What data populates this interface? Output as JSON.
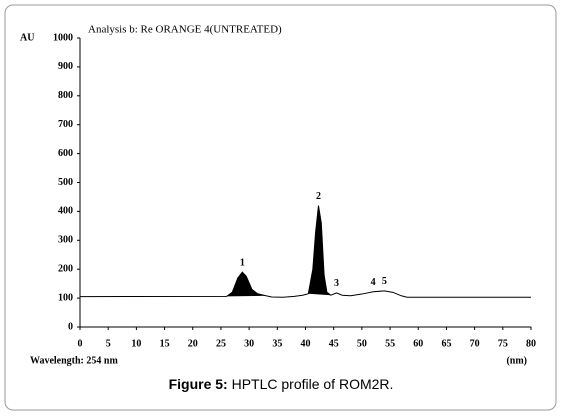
{
  "chart_data": {
    "type": "line",
    "title": "Analysis b: Re ORANGE 4(UNTREATED)",
    "y_label": "AU",
    "x_label": "(nm)",
    "note": "Wavelength: 254 nm",
    "caption_label": "Figure 5:",
    "caption_text": "HPTLC profile of ROM2R.",
    "color": "#000000",
    "xlim": [
      0,
      80
    ],
    "ylim": [
      0,
      1000
    ],
    "xticks": [
      0,
      5,
      10,
      15,
      20,
      25,
      30,
      35,
      40,
      45,
      50,
      55,
      60,
      65,
      70,
      75,
      80
    ],
    "yticks": [
      0,
      100,
      200,
      300,
      400,
      500,
      600,
      700,
      800,
      900,
      1000
    ],
    "x": [
      0,
      26,
      27,
      28,
      28.8,
      29.5,
      30.5,
      31.5,
      33,
      34,
      36,
      38,
      39.5,
      40.5,
      41.3,
      41.8,
      42.3,
      42.8,
      43.3,
      43.8,
      44.5,
      45.5,
      46.5,
      48,
      50,
      52,
      54,
      55.5,
      57,
      58,
      80
    ],
    "values": [
      105,
      106,
      120,
      170,
      190,
      175,
      130,
      115,
      108,
      104,
      103,
      106,
      110,
      115,
      200,
      330,
      420,
      360,
      180,
      120,
      110,
      118,
      110,
      108,
      114,
      122,
      125,
      120,
      108,
      103,
      103
    ],
    "shade": [
      {
        "from": 26,
        "to": 33
      },
      {
        "from": 40.5,
        "to": 44.5
      }
    ],
    "peaks": [
      {
        "label": "1",
        "x": 28.8
      },
      {
        "label": "2",
        "x": 42.3
      },
      {
        "label": "3",
        "x": 45.5
      },
      {
        "label": "4",
        "x": 52
      },
      {
        "label": "5",
        "x": 54
      }
    ]
  }
}
